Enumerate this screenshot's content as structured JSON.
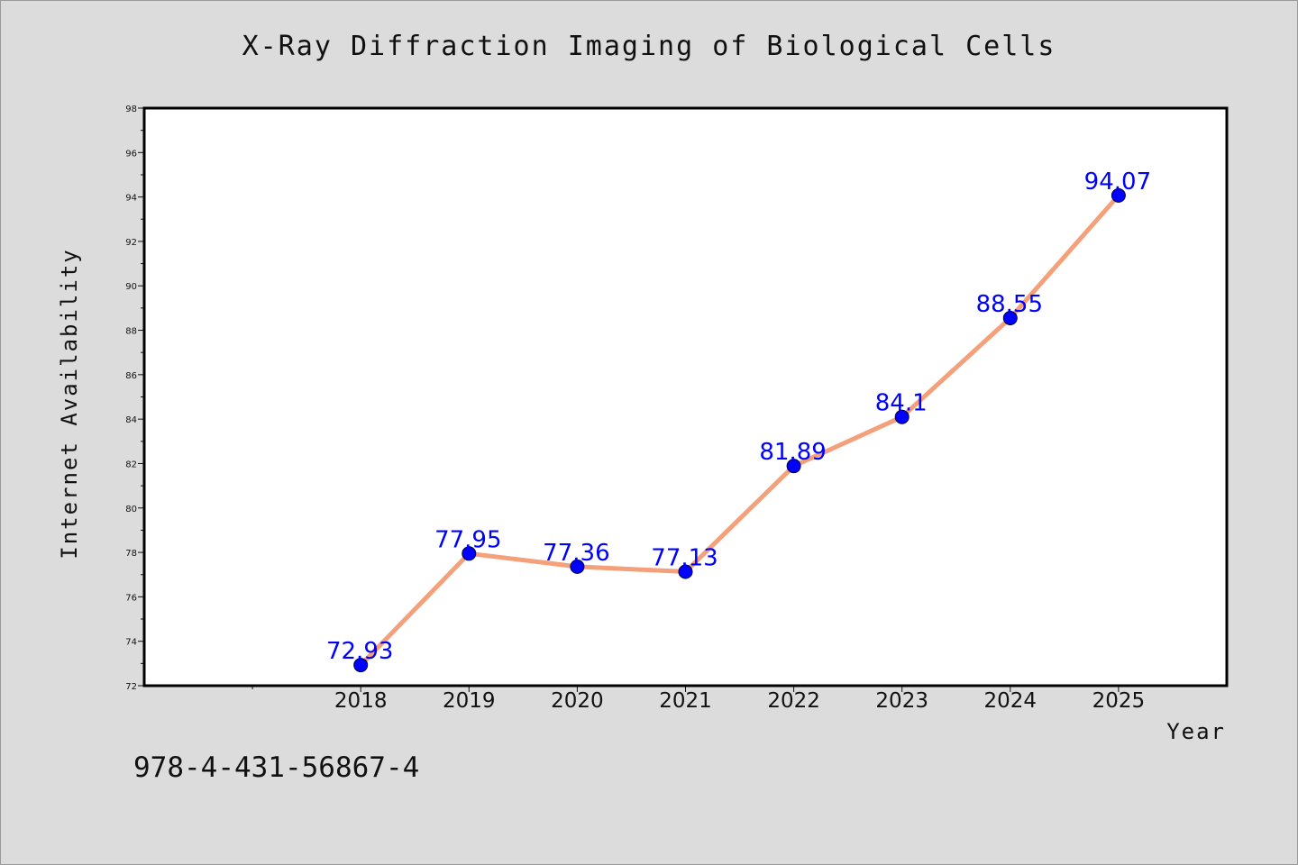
{
  "title": "X-Ray Diffraction Imaging of Biological Cells",
  "isbn": "978-4-431-56867-4",
  "chart_data": {
    "type": "line",
    "title": "X-Ray Diffraction Imaging of Biological Cells",
    "xlabel": "Year",
    "ylabel": "Internet Availability",
    "categories": [
      "2018",
      "2019",
      "2020",
      "2021",
      "2022",
      "2023",
      "2024",
      "2025"
    ],
    "series": [
      {
        "values": [
          72.93,
          77.95,
          77.36,
          77.13,
          81.89,
          84.1,
          88.55,
          94.07
        ],
        "color": "#f4a07a",
        "marker_color": "#0000ff"
      }
    ],
    "data_labels": [
      "72.93",
      "77.95",
      "77.36",
      "77.13",
      "81.89",
      "84.1",
      "88.55",
      "94.07"
    ],
    "ylim": [
      72,
      98
    ],
    "yticks": [
      72,
      74,
      76,
      78,
      80,
      82,
      84,
      86,
      88,
      90,
      92,
      94,
      96,
      98
    ],
    "x_range": [
      2016,
      2026
    ],
    "grid": false,
    "legend": "none",
    "colors": {
      "background": "#dcdcdc",
      "plot_background": "#ffffff",
      "line": "#f4a07a",
      "marker": "#0000ff",
      "label": "#0000ff"
    }
  }
}
